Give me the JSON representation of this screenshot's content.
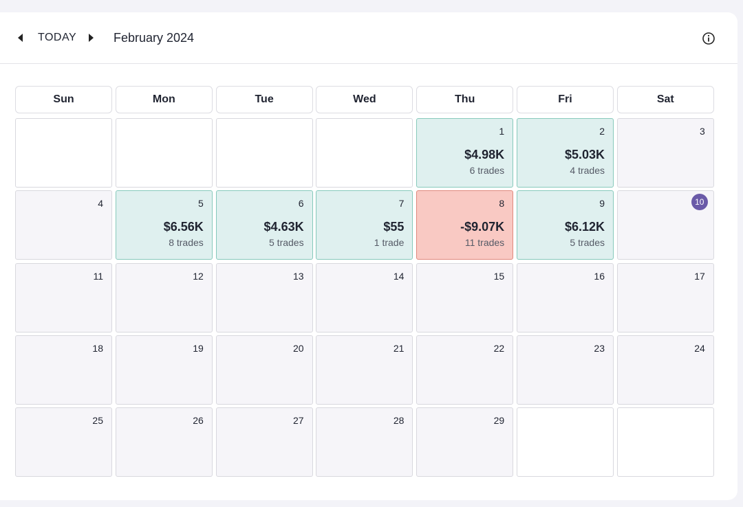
{
  "header": {
    "today": "TODAY",
    "month": "February 2024"
  },
  "weekdays": [
    "Sun",
    "Mon",
    "Tue",
    "Wed",
    "Thu",
    "Fri",
    "Sat"
  ],
  "days": [
    {
      "day": 1,
      "pnl": "$4.98K",
      "trades": "6 trades"
    },
    {
      "day": 2,
      "pnl": "$5.03K",
      "trades": "4 trades"
    },
    {
      "day": 3
    },
    {
      "day": 4
    },
    {
      "day": 5,
      "pnl": "$6.56K",
      "trades": "8 trades"
    },
    {
      "day": 6,
      "pnl": "$4.63K",
      "trades": "5 trades"
    },
    {
      "day": 7,
      "pnl": "$55",
      "trades": "1 trade"
    },
    {
      "day": 8,
      "pnl": "-$9.07K",
      "trades": "11 trades"
    },
    {
      "day": 9,
      "pnl": "$6.12K",
      "trades": "5 trades"
    },
    {
      "day": 10,
      "highlight": true
    },
    {
      "day": 11
    },
    {
      "day": 12
    },
    {
      "day": 13
    },
    {
      "day": 14
    },
    {
      "day": 15
    },
    {
      "day": 16
    },
    {
      "day": 17
    },
    {
      "day": 18
    },
    {
      "day": 19
    },
    {
      "day": 20
    },
    {
      "day": 21
    },
    {
      "day": 22
    },
    {
      "day": 23
    },
    {
      "day": 24
    },
    {
      "day": 25
    },
    {
      "day": 26
    },
    {
      "day": 27
    },
    {
      "day": 28
    },
    {
      "day": 29
    }
  ]
}
